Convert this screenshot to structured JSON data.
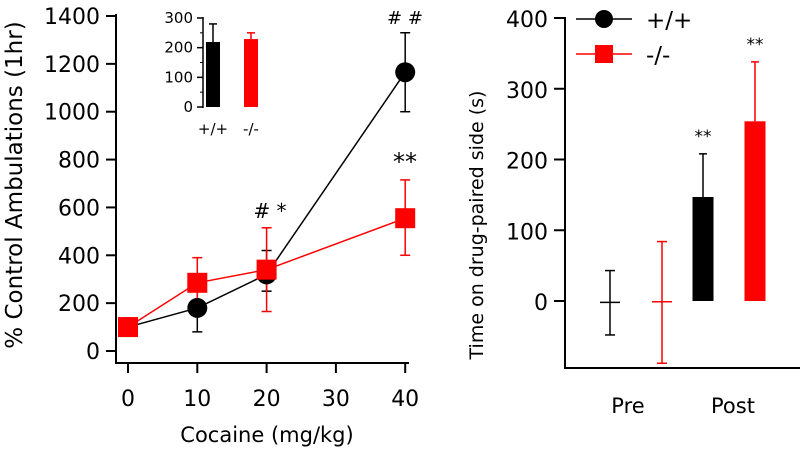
{
  "colors": {
    "wt": "#000000",
    "ko": "#ff0000"
  },
  "chart_data": [
    {
      "type": "line",
      "xlabel": "Cocaine (mg/kg)",
      "ylabel": "% Control Ambulations (1hr)",
      "xlim": [
        0,
        40
      ],
      "ylim": [
        0,
        1400
      ],
      "xticks": [
        0,
        10,
        20,
        30,
        40
      ],
      "yticks": [
        0,
        200,
        400,
        600,
        800,
        1000,
        1200,
        1400
      ],
      "series": [
        {
          "name": "+/+",
          "marker": "circle",
          "color": "#000000",
          "x": [
            0,
            10,
            20,
            40
          ],
          "y": [
            100,
            180,
            320,
            1165
          ],
          "err_low": [
            100,
            80,
            250,
            1000
          ],
          "err_high": [
            100,
            280,
            420,
            1330
          ]
        },
        {
          "name": "-/-",
          "marker": "square",
          "color": "#ff0000",
          "x": [
            0,
            10,
            20,
            40
          ],
          "y": [
            100,
            285,
            340,
            555
          ],
          "err_low": [
            100,
            180,
            165,
            400
          ],
          "err_high": [
            100,
            390,
            515,
            715
          ]
        }
      ],
      "annotations": [
        {
          "x": 20,
          "text": "# *"
        },
        {
          "x": 40,
          "text": "# #",
          "series": "+/+"
        },
        {
          "x": 40,
          "text": "**",
          "series": "-/-"
        }
      ],
      "inset": {
        "type": "bar",
        "categories": [
          "+/+",
          "-/-"
        ],
        "values": [
          219,
          229
        ],
        "err_high": [
          280,
          250
        ],
        "ylim": [
          0,
          300
        ],
        "yticks": [
          0,
          100,
          200,
          300
        ],
        "colors": [
          "#000000",
          "#ff0000"
        ]
      }
    },
    {
      "type": "bar",
      "ylabel": "Time on drug-paired side (s)",
      "categories": [
        "Pre",
        "Post"
      ],
      "ylim": [
        -90,
        400
      ],
      "yticks": [
        0,
        100,
        200,
        300,
        400
      ],
      "legend": {
        "placement": "top-left",
        "entries": [
          "+/+",
          "-/-"
        ]
      },
      "series": [
        {
          "name": "+/+",
          "color": "#000000",
          "values": [
            -2,
            147
          ],
          "err_low": [
            -48,
            147
          ],
          "err_high": [
            43,
            208
          ]
        },
        {
          "name": "-/-",
          "color": "#ff0000",
          "values": [
            -1,
            254
          ],
          "err_low": [
            -88,
            254
          ],
          "err_high": [
            84,
            338
          ]
        }
      ],
      "annotations": [
        {
          "category": "Post",
          "series": "+/+",
          "text": "**"
        },
        {
          "category": "Post",
          "series": "-/-",
          "text": "**"
        }
      ]
    }
  ]
}
